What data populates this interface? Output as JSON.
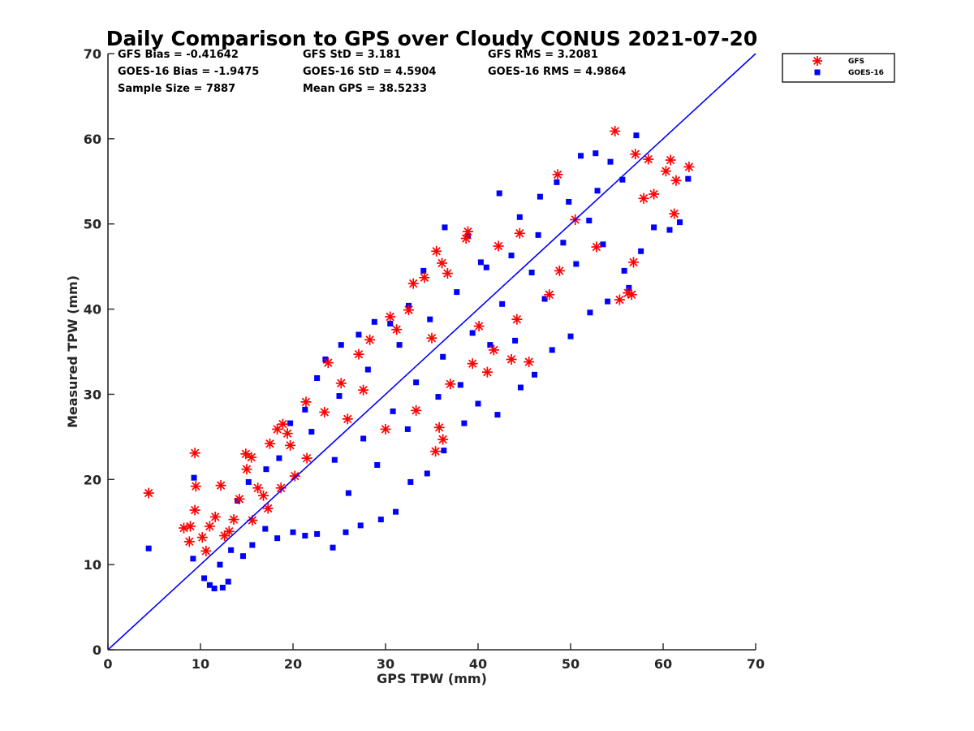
{
  "chart_data": {
    "type": "scatter",
    "title": "Daily Comparison to GPS over Cloudy CONUS 2021-07-20",
    "xlabel": "GPS TPW (mm)",
    "ylabel": "Measured TPW (mm)",
    "xlim": [
      0,
      70
    ],
    "ylim": [
      0,
      70
    ],
    "xticks": [
      "0",
      "10",
      "20",
      "30",
      "40",
      "50",
      "60",
      "70"
    ],
    "yticks": [
      "0",
      "10",
      "20",
      "30",
      "40",
      "50",
      "60",
      "70"
    ],
    "grid": false,
    "legend_position": "outside-top-right",
    "reference_line": {
      "x": [
        0,
        70
      ],
      "y": [
        0,
        70
      ],
      "color": "#0000ff"
    },
    "stats": [
      [
        "GFS Bias = -0.41642",
        "GFS StD = 3.181",
        "GFS RMS = 3.2081"
      ],
      [
        "GOES-16 Bias = -1.9475",
        "GOES-16 StD = 4.5904",
        "GOES-16 RMS = 4.9864"
      ],
      [
        "Sample Size = 7887",
        "Mean GPS = 38.5233",
        ""
      ]
    ],
    "series": [
      {
        "name": "GFS",
        "marker": "asterisk",
        "color": "#ff0000",
        "points": [
          [
            4.4,
            18.4
          ],
          [
            9.4,
            23.1
          ],
          [
            9.5,
            19.2
          ],
          [
            9.4,
            16.4
          ],
          [
            8.2,
            14.3
          ],
          [
            8.9,
            14.5
          ],
          [
            8.8,
            12.7
          ],
          [
            10.6,
            11.6
          ],
          [
            10.2,
            13.2
          ],
          [
            11.0,
            14.5
          ],
          [
            11.6,
            15.6
          ],
          [
            12.2,
            19.3
          ],
          [
            13.1,
            13.9
          ],
          [
            13.6,
            15.3
          ],
          [
            14.2,
            17.7
          ],
          [
            14.9,
            23.0
          ],
          [
            15.5,
            22.6
          ],
          [
            15.0,
            21.2
          ],
          [
            16.2,
            19.0
          ],
          [
            16.8,
            18.1
          ],
          [
            17.5,
            24.2
          ],
          [
            18.3,
            25.9
          ],
          [
            18.9,
            26.5
          ],
          [
            19.4,
            25.4
          ],
          [
            19.7,
            24.0
          ],
          [
            21.4,
            29.1
          ],
          [
            23.8,
            33.7
          ],
          [
            25.2,
            31.3
          ],
          [
            27.1,
            34.7
          ],
          [
            28.3,
            36.4
          ],
          [
            30.5,
            39.1
          ],
          [
            31.2,
            37.6
          ],
          [
            32.5,
            39.9
          ],
          [
            33.0,
            43.0
          ],
          [
            34.2,
            43.7
          ],
          [
            35.0,
            36.6
          ],
          [
            35.5,
            46.8
          ],
          [
            36.1,
            45.4
          ],
          [
            36.7,
            44.2
          ],
          [
            35.4,
            23.3
          ],
          [
            36.2,
            24.7
          ],
          [
            35.8,
            26.1
          ],
          [
            38.9,
            49.1
          ],
          [
            38.7,
            48.3
          ],
          [
            40.1,
            38.0
          ],
          [
            41.0,
            32.6
          ],
          [
            42.2,
            47.4
          ],
          [
            43.6,
            34.1
          ],
          [
            44.5,
            48.9
          ],
          [
            45.5,
            33.8
          ],
          [
            47.7,
            41.7
          ],
          [
            48.6,
            55.8
          ],
          [
            50.5,
            50.5
          ],
          [
            54.8,
            60.9
          ],
          [
            55.3,
            41.1
          ],
          [
            56.2,
            41.9
          ],
          [
            56.6,
            41.7
          ],
          [
            56.8,
            45.5
          ],
          [
            57.0,
            58.2
          ],
          [
            58.4,
            57.6
          ],
          [
            59.0,
            53.5
          ],
          [
            60.8,
            57.5
          ],
          [
            61.2,
            51.2
          ],
          [
            61.4,
            55.1
          ],
          [
            62.8,
            56.7
          ],
          [
            60.3,
            56.2
          ],
          [
            57.9,
            53.0
          ],
          [
            52.8,
            47.3
          ],
          [
            48.8,
            44.5
          ],
          [
            44.2,
            38.8
          ],
          [
            41.7,
            35.2
          ],
          [
            39.4,
            33.6
          ],
          [
            37.0,
            31.2
          ],
          [
            33.3,
            28.1
          ],
          [
            30.0,
            25.9
          ],
          [
            27.6,
            30.5
          ],
          [
            25.9,
            27.1
          ],
          [
            23.4,
            27.9
          ],
          [
            21.5,
            22.5
          ],
          [
            20.2,
            20.4
          ],
          [
            18.7,
            19.0
          ],
          [
            17.3,
            16.6
          ],
          [
            15.6,
            15.2
          ],
          [
            12.6,
            13.4
          ]
        ]
      },
      {
        "name": "GOES-16",
        "marker": "square",
        "color": "#0000ff",
        "points": [
          [
            4.4,
            11.9
          ],
          [
            9.2,
            10.7
          ],
          [
            9.3,
            20.2
          ],
          [
            10.4,
            8.4
          ],
          [
            11.0,
            7.6
          ],
          [
            11.5,
            7.2
          ],
          [
            12.4,
            7.3
          ],
          [
            13.0,
            8.0
          ],
          [
            12.1,
            10.0
          ],
          [
            13.3,
            11.7
          ],
          [
            14.6,
            11.0
          ],
          [
            15.6,
            12.3
          ],
          [
            17.0,
            14.2
          ],
          [
            18.3,
            13.1
          ],
          [
            20.0,
            13.8
          ],
          [
            21.3,
            13.4
          ],
          [
            22.6,
            13.6
          ],
          [
            24.3,
            12.0
          ],
          [
            25.7,
            13.8
          ],
          [
            27.3,
            14.6
          ],
          [
            29.5,
            15.3
          ],
          [
            31.1,
            16.2
          ],
          [
            32.7,
            19.7
          ],
          [
            34.5,
            20.7
          ],
          [
            36.3,
            23.4
          ],
          [
            38.5,
            26.6
          ],
          [
            40.0,
            28.9
          ],
          [
            42.1,
            27.6
          ],
          [
            44.6,
            30.8
          ],
          [
            46.1,
            32.3
          ],
          [
            48.0,
            35.2
          ],
          [
            50.0,
            36.8
          ],
          [
            52.1,
            39.6
          ],
          [
            54.0,
            40.9
          ],
          [
            56.3,
            42.5
          ],
          [
            55.8,
            44.5
          ],
          [
            57.6,
            46.8
          ],
          [
            59.0,
            49.6
          ],
          [
            60.7,
            49.3
          ],
          [
            61.8,
            50.2
          ],
          [
            62.7,
            55.3
          ],
          [
            57.1,
            60.4
          ],
          [
            54.3,
            57.3
          ],
          [
            52.7,
            58.3
          ],
          [
            51.1,
            58.0
          ],
          [
            48.5,
            54.9
          ],
          [
            46.7,
            53.2
          ],
          [
            44.5,
            50.8
          ],
          [
            42.3,
            53.6
          ],
          [
            40.3,
            45.5
          ],
          [
            38.9,
            48.6
          ],
          [
            36.4,
            49.6
          ],
          [
            34.1,
            44.5
          ],
          [
            32.5,
            40.4
          ],
          [
            30.5,
            38.3
          ],
          [
            28.8,
            38.5
          ],
          [
            27.1,
            37.0
          ],
          [
            25.2,
            35.8
          ],
          [
            23.5,
            34.1
          ],
          [
            22.6,
            31.9
          ],
          [
            21.3,
            28.2
          ],
          [
            19.7,
            26.6
          ],
          [
            18.5,
            22.5
          ],
          [
            17.1,
            21.2
          ],
          [
            15.2,
            19.7
          ],
          [
            14.0,
            17.5
          ],
          [
            24.5,
            22.3
          ],
          [
            27.6,
            24.8
          ],
          [
            30.8,
            28.0
          ],
          [
            33.3,
            31.4
          ],
          [
            36.2,
            34.4
          ],
          [
            39.4,
            37.2
          ],
          [
            42.6,
            40.6
          ],
          [
            45.8,
            44.3
          ],
          [
            49.2,
            47.8
          ],
          [
            52.0,
            50.4
          ],
          [
            26.0,
            18.4
          ],
          [
            29.1,
            21.7
          ],
          [
            32.4,
            25.9
          ],
          [
            35.7,
            29.7
          ],
          [
            38.1,
            31.1
          ],
          [
            41.3,
            35.8
          ],
          [
            44.0,
            36.3
          ],
          [
            47.2,
            41.2
          ],
          [
            50.6,
            45.3
          ],
          [
            53.5,
            47.6
          ],
          [
            22.0,
            25.6
          ],
          [
            25.0,
            29.8
          ],
          [
            28.1,
            32.9
          ],
          [
            31.5,
            35.8
          ],
          [
            34.8,
            38.8
          ],
          [
            37.7,
            42.0
          ],
          [
            40.9,
            44.9
          ],
          [
            43.6,
            46.3
          ],
          [
            46.5,
            48.7
          ],
          [
            49.8,
            52.6
          ],
          [
            52.9,
            53.9
          ],
          [
            55.6,
            55.2
          ]
        ]
      }
    ]
  }
}
